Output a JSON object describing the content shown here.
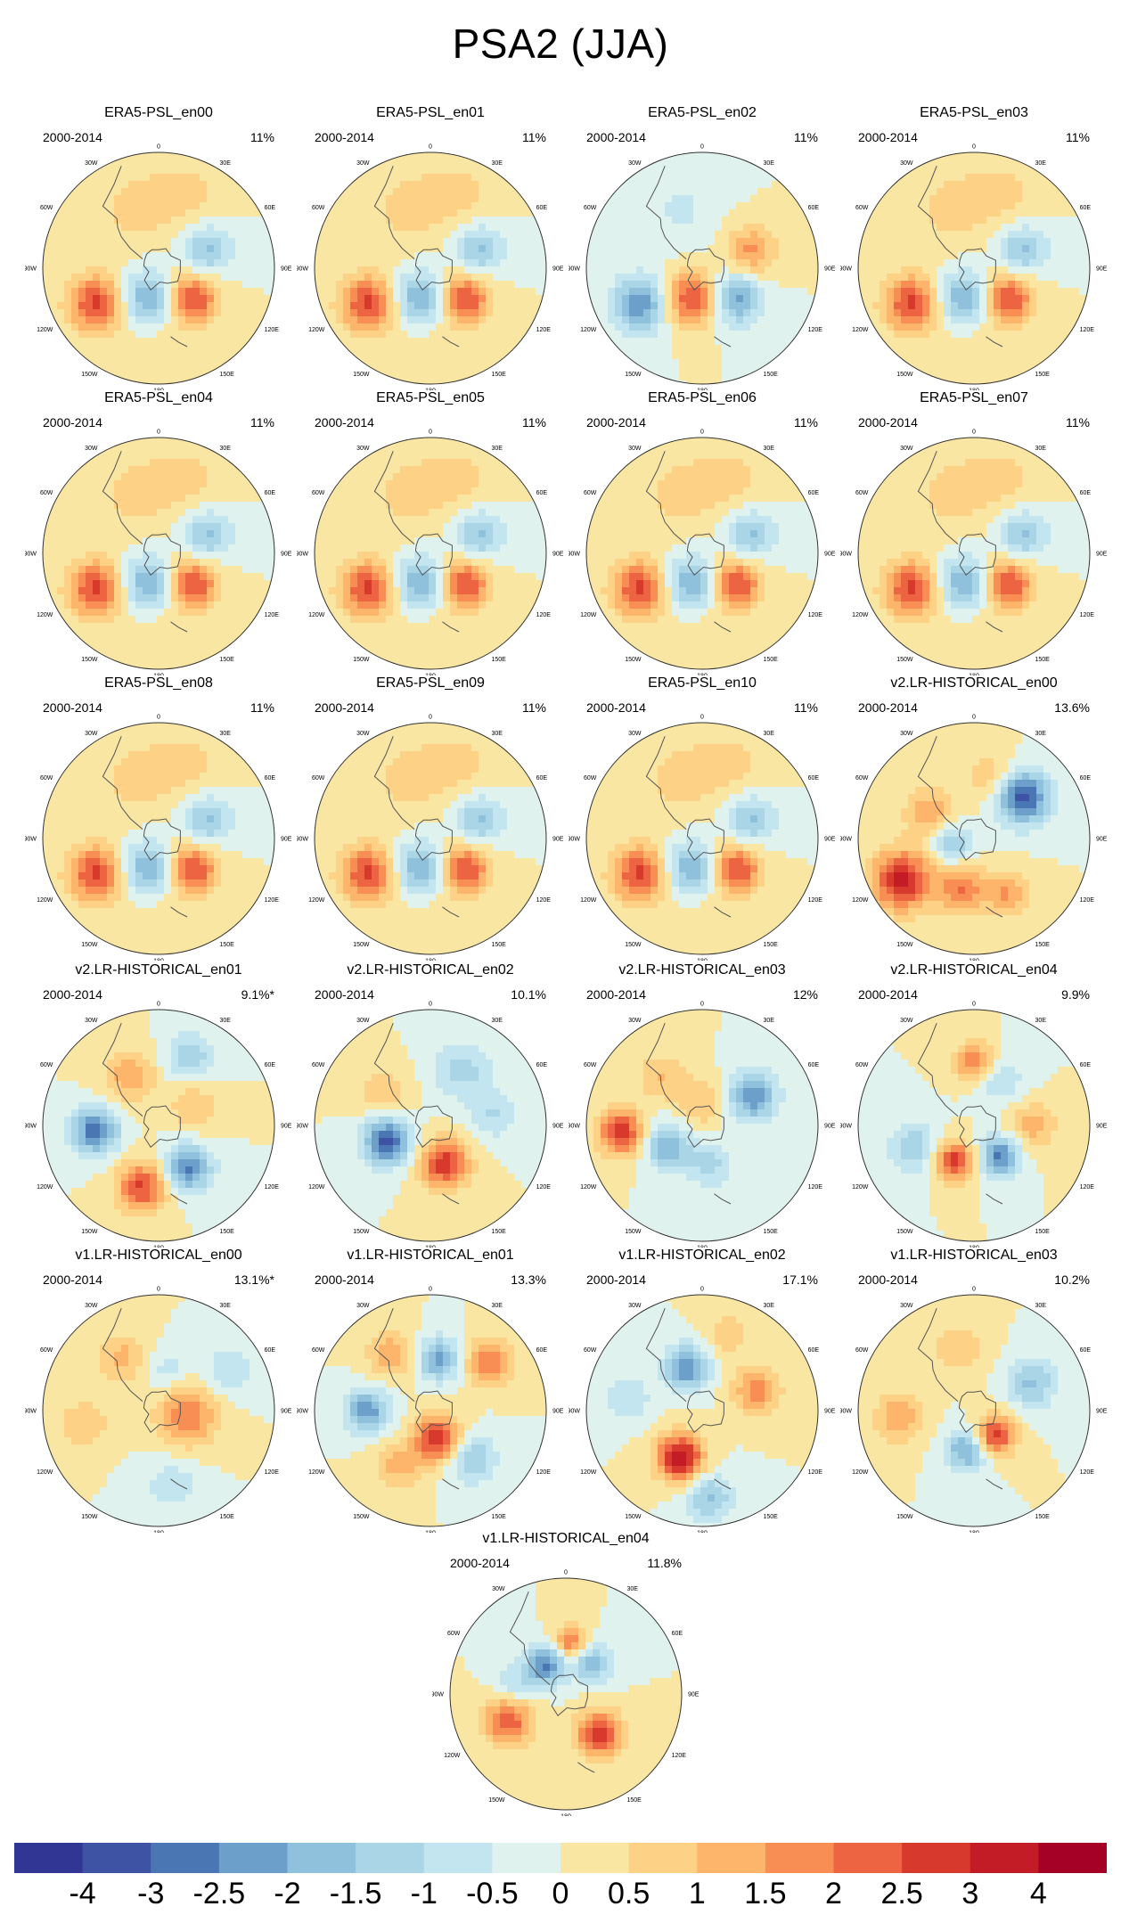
{
  "figure": {
    "title": "PSA2 (JJA)",
    "period_label": "2000-2014"
  },
  "panels": [
    {
      "title": "ERA5-PSL_en00",
      "pct": "11%",
      "pattern": "era5"
    },
    {
      "title": "ERA5-PSL_en01",
      "pct": "11%",
      "pattern": "era5"
    },
    {
      "title": "ERA5-PSL_en02",
      "pct": "11%",
      "pattern": "era5_inv"
    },
    {
      "title": "ERA5-PSL_en03",
      "pct": "11%",
      "pattern": "era5"
    },
    {
      "title": "ERA5-PSL_en04",
      "pct": "11%",
      "pattern": "era5"
    },
    {
      "title": "ERA5-PSL_en05",
      "pct": "11%",
      "pattern": "era5"
    },
    {
      "title": "ERA5-PSL_en06",
      "pct": "11%",
      "pattern": "era5"
    },
    {
      "title": "ERA5-PSL_en07",
      "pct": "11%",
      "pattern": "era5"
    },
    {
      "title": "ERA5-PSL_en08",
      "pct": "11%",
      "pattern": "era5"
    },
    {
      "title": "ERA5-PSL_en09",
      "pct": "11%",
      "pattern": "era5"
    },
    {
      "title": "ERA5-PSL_en10",
      "pct": "11%",
      "pattern": "era5"
    },
    {
      "title": "v2.LR-HISTORICAL_en00",
      "pct": "13.6%",
      "pattern": "v2_00"
    },
    {
      "title": "v2.LR-HISTORICAL_en01",
      "pct": "9.1%*",
      "pattern": "v2_01"
    },
    {
      "title": "v2.LR-HISTORICAL_en02",
      "pct": "10.1%",
      "pattern": "v2_02"
    },
    {
      "title": "v2.LR-HISTORICAL_en03",
      "pct": "12%",
      "pattern": "v2_03"
    },
    {
      "title": "v2.LR-HISTORICAL_en04",
      "pct": "9.9%",
      "pattern": "v2_04"
    },
    {
      "title": "v1.LR-HISTORICAL_en00",
      "pct": "13.1%*",
      "pattern": "v1_00"
    },
    {
      "title": "v1.LR-HISTORICAL_en01",
      "pct": "13.3%",
      "pattern": "v1_01"
    },
    {
      "title": "v1.LR-HISTORICAL_en02",
      "pct": "17.1%",
      "pattern": "v1_02"
    },
    {
      "title": "v1.LR-HISTORICAL_en03",
      "pct": "10.2%",
      "pattern": "v1_03"
    },
    {
      "title": "v1.LR-HISTORICAL_en04",
      "pct": "11.8%",
      "pattern": "v1_04"
    }
  ],
  "longitude_labels": [
    "0",
    "30E",
    "60E",
    "90E",
    "120E",
    "150E",
    "180",
    "150W",
    "120W",
    "90W",
    "60W",
    "30W"
  ],
  "colorbar": {
    "labels": [
      "-4",
      "-3",
      "-2.5",
      "-2",
      "-1.5",
      "-1",
      "-0.5",
      "0",
      "0.5",
      "1",
      "1.5",
      "2",
      "2.5",
      "3",
      "4"
    ],
    "colors": [
      "#313695",
      "#3e53a3",
      "#4a77b4",
      "#6d9fcb",
      "#8fc1dd",
      "#a9d5e7",
      "#c3e5ef",
      "#e0f2ee",
      "#f9e6a3",
      "#fdd287",
      "#fdb56c",
      "#f98e55",
      "#ec6442",
      "#d73a2c",
      "#c41c27",
      "#a50026"
    ]
  }
}
